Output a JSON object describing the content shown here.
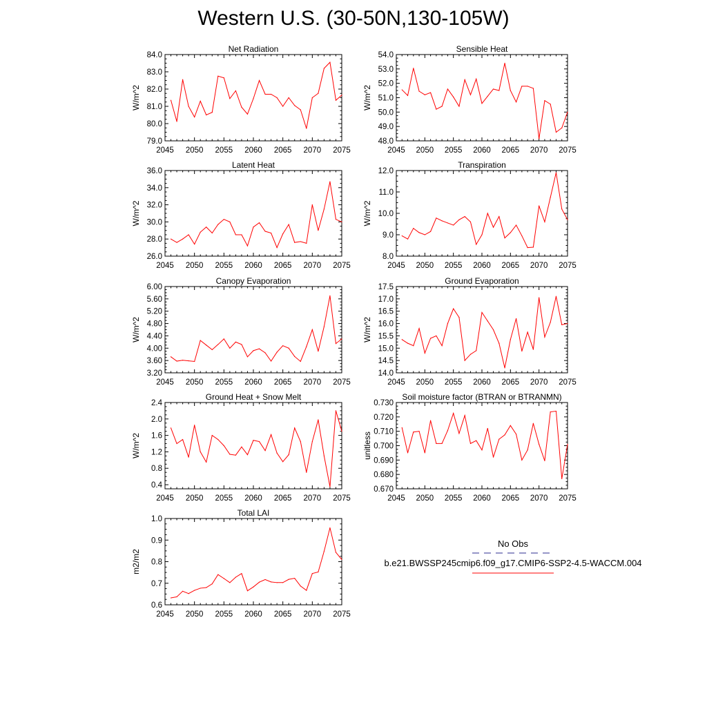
{
  "title": "Western U.S. (30-50N,130-105W)",
  "legend": {
    "entries": [
      {
        "label": "No Obs",
        "color": "#2b2b8f",
        "style": "dashed"
      },
      {
        "label": "b.e21.BWSSP245cmip6.f09_g17.CMIP6-SSP2-4.5-WACCM.004",
        "color": "#ff0000",
        "style": "solid"
      }
    ]
  },
  "chart_data": [
    {
      "type": "line",
      "title": "Net Radiation",
      "xlabel": "",
      "ylabel": "W/m^2",
      "xlim": [
        2045,
        2075
      ],
      "ylim": [
        79.0,
        84.0
      ],
      "xticks": [
        2045,
        2050,
        2055,
        2060,
        2065,
        2070,
        2075
      ],
      "yticks": [
        "79.0",
        "80.0",
        "81.0",
        "82.0",
        "83.0",
        "84.0"
      ],
      "x": [
        2046,
        2047,
        2048,
        2049,
        2050,
        2051,
        2052,
        2053,
        2054,
        2055,
        2056,
        2057,
        2058,
        2059,
        2060,
        2061,
        2062,
        2063,
        2064,
        2065,
        2066,
        2067,
        2068,
        2069,
        2070,
        2071,
        2072,
        2073,
        2074,
        2075
      ],
      "series": [
        {
          "color": "#ff0000",
          "values": [
            81.35,
            80.12,
            82.55,
            81.0,
            80.38,
            81.3,
            80.5,
            80.65,
            82.75,
            82.65,
            81.45,
            81.9,
            80.95,
            80.55,
            81.45,
            82.5,
            81.7,
            81.7,
            81.5,
            81.0,
            81.5,
            81.05,
            80.8,
            79.72,
            81.5,
            81.75,
            83.2,
            83.55,
            81.35,
            81.65
          ]
        }
      ]
    },
    {
      "type": "line",
      "title": "Sensible Heat",
      "xlabel": "",
      "ylabel": "W/m^2",
      "xlim": [
        2045,
        2075
      ],
      "ylim": [
        48.0,
        54.0
      ],
      "xticks": [
        2045,
        2050,
        2055,
        2060,
        2065,
        2070,
        2075
      ],
      "yticks": [
        "48.0",
        "49.0",
        "50.0",
        "51.0",
        "52.0",
        "53.0",
        "54.0"
      ],
      "x": [
        2046,
        2047,
        2048,
        2049,
        2050,
        2051,
        2052,
        2053,
        2054,
        2055,
        2056,
        2057,
        2058,
        2059,
        2060,
        2061,
        2062,
        2063,
        2064,
        2065,
        2066,
        2067,
        2068,
        2069,
        2070,
        2071,
        2072,
        2073,
        2074,
        2075
      ],
      "series": [
        {
          "color": "#ff0000",
          "values": [
            51.55,
            51.15,
            53.05,
            51.45,
            51.2,
            51.35,
            50.2,
            50.4,
            51.6,
            51.05,
            50.4,
            52.25,
            51.2,
            52.3,
            50.6,
            51.1,
            51.6,
            51.5,
            53.4,
            51.5,
            50.7,
            51.8,
            51.8,
            51.65,
            48.15,
            50.8,
            50.55,
            48.6,
            48.9,
            50.0
          ]
        }
      ]
    },
    {
      "type": "line",
      "title": "Latent Heat",
      "xlabel": "",
      "ylabel": "W/m^2",
      "xlim": [
        2045,
        2075
      ],
      "ylim": [
        26.0,
        36.0
      ],
      "xticks": [
        2045,
        2050,
        2055,
        2060,
        2065,
        2070,
        2075
      ],
      "yticks": [
        "26.0",
        "28.0",
        "30.0",
        "32.0",
        "34.0",
        "36.0"
      ],
      "x": [
        2046,
        2047,
        2048,
        2049,
        2050,
        2051,
        2052,
        2053,
        2054,
        2055,
        2056,
        2057,
        2058,
        2059,
        2060,
        2061,
        2062,
        2063,
        2064,
        2065,
        2066,
        2067,
        2068,
        2069,
        2070,
        2071,
        2072,
        2073,
        2074,
        2075
      ],
      "series": [
        {
          "color": "#ff0000",
          "values": [
            28.0,
            27.6,
            28.0,
            28.5,
            27.4,
            28.8,
            29.4,
            28.7,
            29.7,
            30.3,
            30.0,
            28.5,
            28.5,
            27.2,
            29.4,
            29.9,
            28.9,
            28.7,
            27.0,
            28.6,
            29.7,
            27.6,
            27.7,
            27.5,
            32.0,
            29.0,
            31.5,
            34.7,
            30.3,
            30.0
          ]
        }
      ]
    },
    {
      "type": "line",
      "title": "Transpiration",
      "xlabel": "",
      "ylabel": "W/m^2",
      "xlim": [
        2045,
        2075
      ],
      "ylim": [
        8.0,
        12.0
      ],
      "xticks": [
        2045,
        2050,
        2055,
        2060,
        2065,
        2070,
        2075
      ],
      "yticks": [
        "8.0",
        "9.0",
        "10.0",
        "11.0",
        "12.0"
      ],
      "x": [
        2046,
        2047,
        2048,
        2049,
        2050,
        2051,
        2052,
        2053,
        2054,
        2055,
        2056,
        2057,
        2058,
        2059,
        2060,
        2061,
        2062,
        2063,
        2064,
        2065,
        2066,
        2067,
        2068,
        2069,
        2070,
        2071,
        2072,
        2073,
        2074,
        2075
      ],
      "series": [
        {
          "color": "#ff0000",
          "values": [
            8.95,
            8.8,
            9.3,
            9.1,
            9.0,
            9.15,
            9.78,
            9.65,
            9.55,
            9.45,
            9.7,
            9.85,
            9.6,
            8.55,
            9.0,
            10.0,
            9.35,
            9.85,
            8.85,
            9.1,
            9.45,
            8.95,
            8.4,
            8.42,
            10.35,
            9.6,
            10.75,
            11.9,
            10.2,
            9.7
          ]
        }
      ]
    },
    {
      "type": "line",
      "title": "Canopy Evaporation",
      "xlabel": "",
      "ylabel": "W/m^2",
      "xlim": [
        2045,
        2075
      ],
      "ylim": [
        3.2,
        6.0
      ],
      "xticks": [
        2045,
        2050,
        2055,
        2060,
        2065,
        2070,
        2075
      ],
      "yticks": [
        "3.20",
        "3.60",
        "4.00",
        "4.40",
        "4.80",
        "5.20",
        "5.60",
        "6.00"
      ],
      "x": [
        2046,
        2047,
        2048,
        2049,
        2050,
        2051,
        2052,
        2053,
        2054,
        2055,
        2056,
        2057,
        2058,
        2059,
        2060,
        2061,
        2062,
        2063,
        2064,
        2065,
        2066,
        2067,
        2068,
        2069,
        2070,
        2071,
        2072,
        2073,
        2074,
        2075
      ],
      "series": [
        {
          "color": "#ff0000",
          "values": [
            3.72,
            3.58,
            3.61,
            3.59,
            3.57,
            4.25,
            4.1,
            3.95,
            4.12,
            4.3,
            4.0,
            4.2,
            4.12,
            3.72,
            3.92,
            3.98,
            3.85,
            3.58,
            3.87,
            4.08,
            4.0,
            3.73,
            3.57,
            4.05,
            4.6,
            3.9,
            4.7,
            5.7,
            4.15,
            4.3
          ]
        }
      ]
    },
    {
      "type": "line",
      "title": "Ground Evaporation",
      "xlabel": "",
      "ylabel": "W/m^2",
      "xlim": [
        2045,
        2075
      ],
      "ylim": [
        14.0,
        17.5
      ],
      "xticks": [
        2045,
        2050,
        2055,
        2060,
        2065,
        2070,
        2075
      ],
      "yticks": [
        "14.0",
        "14.5",
        "15.0",
        "15.5",
        "16.0",
        "16.5",
        "17.0",
        "17.5"
      ],
      "x": [
        2046,
        2047,
        2048,
        2049,
        2050,
        2051,
        2052,
        2053,
        2054,
        2055,
        2056,
        2057,
        2058,
        2059,
        2060,
        2061,
        2062,
        2063,
        2064,
        2065,
        2066,
        2067,
        2068,
        2069,
        2070,
        2071,
        2072,
        2073,
        2074,
        2075
      ],
      "series": [
        {
          "color": "#ff0000",
          "values": [
            15.35,
            15.2,
            15.1,
            15.8,
            14.8,
            15.4,
            15.5,
            15.1,
            16.0,
            16.6,
            16.25,
            14.5,
            14.75,
            14.9,
            16.45,
            16.1,
            15.75,
            15.2,
            14.2,
            15.35,
            16.2,
            14.88,
            15.65,
            14.95,
            17.05,
            15.45,
            16.05,
            17.1,
            15.95,
            16.0
          ]
        }
      ]
    },
    {
      "type": "line",
      "title": "Ground Heat + Snow Melt",
      "xlabel": "",
      "ylabel": "W/m^2",
      "xlim": [
        2045,
        2075
      ],
      "ylim": [
        0.3,
        2.4
      ],
      "xticks": [
        2045,
        2050,
        2055,
        2060,
        2065,
        2070,
        2075
      ],
      "yticks": [
        "0.4",
        "0.8",
        "1.2",
        "1.6",
        "2.0",
        "2.4"
      ],
      "x": [
        2046,
        2047,
        2048,
        2049,
        2050,
        2051,
        2052,
        2053,
        2054,
        2055,
        2056,
        2057,
        2058,
        2059,
        2060,
        2061,
        2062,
        2063,
        2064,
        2065,
        2066,
        2067,
        2068,
        2069,
        2070,
        2071,
        2072,
        2073,
        2074,
        2075
      ],
      "series": [
        {
          "color": "#ff0000",
          "values": [
            1.78,
            1.4,
            1.5,
            1.07,
            1.85,
            1.2,
            0.95,
            1.6,
            1.5,
            1.35,
            1.14,
            1.12,
            1.32,
            1.13,
            1.48,
            1.45,
            1.23,
            1.62,
            1.17,
            0.96,
            1.13,
            1.78,
            1.45,
            0.7,
            1.45,
            1.98,
            1.1,
            0.35,
            2.2,
            1.7
          ]
        }
      ]
    },
    {
      "type": "line",
      "title": "Soil moisture factor (BTRAN or BTRANMN)",
      "xlabel": "",
      "ylabel": "unitless",
      "xlim": [
        2045,
        2075
      ],
      "ylim": [
        0.67,
        0.73
      ],
      "xticks": [
        2045,
        2050,
        2055,
        2060,
        2065,
        2070,
        2075
      ],
      "yticks": [
        "0.670",
        "0.680",
        "0.690",
        "0.700",
        "0.710",
        "0.720",
        "0.730"
      ],
      "x": [
        2046,
        2047,
        2048,
        2049,
        2050,
        2051,
        2052,
        2053,
        2054,
        2055,
        2056,
        2057,
        2058,
        2059,
        2060,
        2061,
        2062,
        2063,
        2064,
        2065,
        2066,
        2067,
        2068,
        2069,
        2070,
        2071,
        2072,
        2073,
        2074,
        2075
      ],
      "series": [
        {
          "color": "#ff0000",
          "values": [
            0.7125,
            0.695,
            0.7095,
            0.71,
            0.695,
            0.7175,
            0.7015,
            0.7015,
            0.7105,
            0.7225,
            0.7085,
            0.721,
            0.7015,
            0.7035,
            0.697,
            0.712,
            0.692,
            0.7045,
            0.7075,
            0.714,
            0.708,
            0.69,
            0.697,
            0.7155,
            0.701,
            0.6895,
            0.7235,
            0.724,
            0.677,
            0.701
          ]
        }
      ]
    },
    {
      "type": "line",
      "title": "Total LAI",
      "xlabel": "",
      "ylabel": "m2/m2",
      "xlim": [
        2045,
        2075
      ],
      "ylim": [
        0.6,
        1.0
      ],
      "xticks": [
        2045,
        2050,
        2055,
        2060,
        2065,
        2070,
        2075
      ],
      "yticks": [
        "0.6",
        "0.7",
        "0.8",
        "0.9",
        "1.0"
      ],
      "x": [
        2046,
        2047,
        2048,
        2049,
        2050,
        2051,
        2052,
        2053,
        2054,
        2055,
        2056,
        2057,
        2058,
        2059,
        2060,
        2061,
        2062,
        2063,
        2064,
        2065,
        2066,
        2067,
        2068,
        2069,
        2070,
        2071,
        2072,
        2073,
        2074,
        2075
      ],
      "series": [
        {
          "color": "#ff0000",
          "values": [
            0.632,
            0.637,
            0.663,
            0.652,
            0.667,
            0.677,
            0.68,
            0.697,
            0.74,
            0.722,
            0.703,
            0.728,
            0.745,
            0.665,
            0.683,
            0.705,
            0.717,
            0.706,
            0.703,
            0.703,
            0.718,
            0.723,
            0.687,
            0.667,
            0.745,
            0.752,
            0.848,
            0.957,
            0.843,
            0.81
          ]
        }
      ]
    }
  ]
}
